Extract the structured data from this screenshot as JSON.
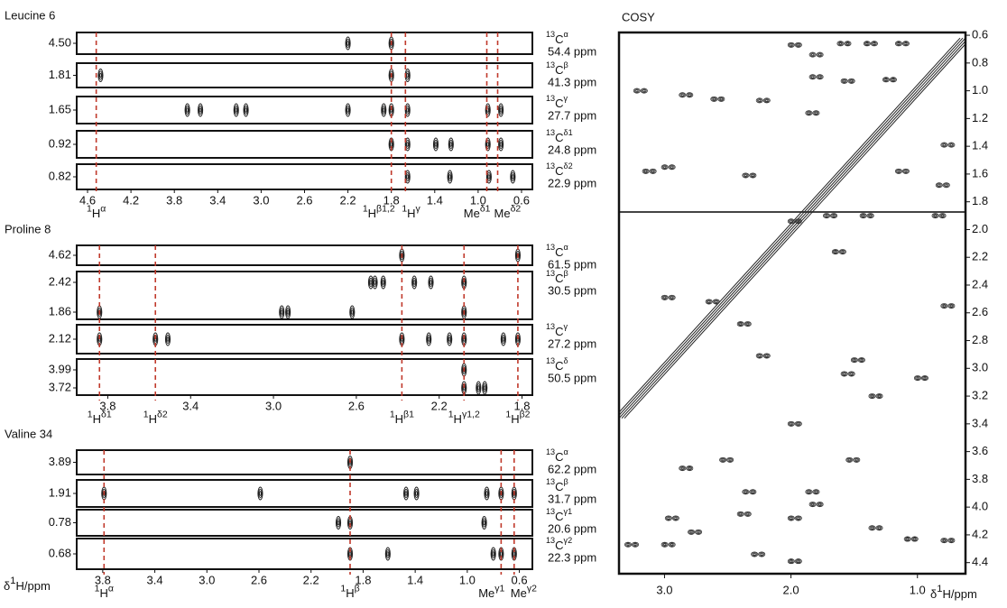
{
  "panels": [
    {
      "title": "Leucine 6",
      "xlim": [
        4.7,
        0.5
      ],
      "xticks": [
        4.6,
        4.2,
        3.8,
        3.4,
        {
          "value": 3,
          "label": "3.0"
        },
        2.6,
        2.2,
        1.8,
        1.4,
        {
          "value": 1,
          "label": "1.0"
        },
        0.6
      ],
      "strips": [
        {
          "ylabels": [
            "4.50"
          ],
          "iso": "13",
          "atom": "C",
          "sup": "α",
          "shift": "54.4 ppm",
          "peaks": [
            [
              2.2,
              1.8
            ]
          ]
        },
        {
          "ylabels": [
            "1.81"
          ],
          "iso": "13",
          "atom": "C",
          "sup": "β",
          "shift": "41.3 ppm",
          "peaks": [
            [
              4.48,
              1.8,
              1.65
            ]
          ]
        },
        {
          "ylabels": [
            "1.65"
          ],
          "iso": "13",
          "atom": "C",
          "sup": "γ",
          "shift": "27.7 ppm",
          "peaks": [
            [
              3.68,
              3.56,
              3.23,
              3.14,
              2.2,
              1.87,
              1.8,
              1.65,
              0.91,
              0.79
            ]
          ]
        },
        {
          "ylabels": [
            "0.92"
          ],
          "iso": "13",
          "atom": "C",
          "sup": "δ1",
          "shift": "24.8 ppm",
          "peaks": [
            [
              1.8,
              1.65,
              1.39,
              1.25,
              0.91,
              0.79
            ]
          ]
        },
        {
          "ylabels": [
            "0.82"
          ],
          "iso": "13",
          "atom": "C",
          "sup": "δ2",
          "shift": "22.9 ppm",
          "peaks": [
            [
              1.65,
              1.26,
              0.9,
              0.68
            ]
          ]
        }
      ],
      "assignments": [
        {
          "ppm": 4.52,
          "iso": "1",
          "base": "H",
          "sup": "α"
        },
        {
          "ppm": 1.8,
          "iso": "1",
          "base": "H",
          "sup": "β1,2"
        },
        {
          "ppm": 1.67,
          "iso": "1",
          "base": "H",
          "sup": "γ"
        },
        {
          "ppm": 0.92,
          "base": "Me",
          "sup": "δ1"
        },
        {
          "ppm": 0.82,
          "base": "Me",
          "sup": "δ2"
        }
      ]
    },
    {
      "title": "Proline 8",
      "xlim": [
        3.95,
        1.75
      ],
      "xticks": [
        3.8,
        3.4,
        {
          "value": 3,
          "label": "3.0"
        },
        2.6,
        2.2,
        1.8
      ],
      "strips": [
        {
          "ylabels": [
            "4.62"
          ],
          "iso": "13",
          "atom": "C",
          "sup": "α",
          "shift": "61.5 ppm",
          "peaks": [
            [
              2.38,
              1.82
            ]
          ]
        },
        {
          "ylabels": [
            "2.42",
            "1.86"
          ],
          "iso": "13",
          "atom": "C",
          "sup": "β",
          "shift": "30.5 ppm",
          "peaks": [
            [
              2.53,
              2.51,
              2.47,
              2.32,
              2.24,
              2.08
            ],
            [
              3.84,
              2.96,
              2.93,
              2.62,
              2.08
            ]
          ]
        },
        {
          "ylabels": [
            "2.12"
          ],
          "iso": "13",
          "atom": "C",
          "sup": "γ",
          "shift": "27.2 ppm",
          "peaks": [
            [
              3.84,
              3.57,
              3.51,
              2.38,
              2.25,
              2.15,
              2.08,
              1.89,
              1.82
            ]
          ]
        },
        {
          "ylabels": [
            "3.99",
            "3.72"
          ],
          "iso": "13",
          "atom": "C",
          "sup": "δ",
          "shift": "50.5 ppm",
          "peaks": [
            [
              2.08
            ],
            [
              2.08,
              2.01,
              1.98
            ]
          ]
        }
      ],
      "assignments": [
        {
          "ppm": 3.84,
          "iso": "1",
          "base": "H",
          "sup": "δ1"
        },
        {
          "ppm": 3.57,
          "iso": "1",
          "base": "H",
          "sup": "δ2"
        },
        {
          "ppm": 2.38,
          "iso": "1",
          "base": "H",
          "sup": "β1"
        },
        {
          "ppm": 2.08,
          "iso": "1",
          "base": "H",
          "sup": "γ1,2"
        },
        {
          "ppm": 1.82,
          "iso": "1",
          "base": "H",
          "sup": "β2"
        }
      ]
    },
    {
      "title": "Valine 34",
      "xlim": [
        4.0,
        0.5
      ],
      "xticks": [
        3.8,
        3.4,
        {
          "value": 3,
          "label": "3.0"
        },
        2.6,
        2.2,
        1.8,
        1.4,
        {
          "value": 1,
          "label": "1.0"
        },
        0.6
      ],
      "x_label": {
        "pre": "δ",
        "sup": "1",
        "post": "H/ppm"
      },
      "strips": [
        {
          "ylabels": [
            "3.89"
          ],
          "iso": "13",
          "atom": "C",
          "sup": "α",
          "shift": "62.2 ppm",
          "peaks": [
            [
              1.9
            ]
          ]
        },
        {
          "ylabels": [
            "1.91"
          ],
          "iso": "13",
          "atom": "C",
          "sup": "β",
          "shift": "31.7 ppm",
          "peaks": [
            [
              3.79,
              2.59,
              1.47,
              1.39,
              0.85,
              0.74,
              0.64
            ]
          ]
        },
        {
          "ylabels": [
            "0.78"
          ],
          "iso": "13",
          "atom": "C",
          "sup": "γ1",
          "shift": "20.6 ppm",
          "peaks": [
            [
              1.99,
              1.9,
              0.87
            ]
          ]
        },
        {
          "ylabels": [
            "0.68"
          ],
          "iso": "13",
          "atom": "C",
          "sup": "γ2",
          "shift": "22.3 ppm",
          "peaks": [
            [
              1.9,
              1.61,
              0.8,
              0.74,
              0.64
            ]
          ]
        }
      ],
      "assignments": [
        {
          "ppm": 3.79,
          "iso": "1",
          "base": "H",
          "sup": "α"
        },
        {
          "ppm": 1.9,
          "iso": "1",
          "base": "H",
          "sup": "β"
        },
        {
          "ppm": 0.74,
          "base": "Me",
          "sup": "γ1"
        },
        {
          "ppm": 0.64,
          "base": "Me",
          "sup": "γ2"
        }
      ]
    }
  ],
  "cosy": {
    "title": "COSY",
    "xlim": [
      3.36,
      0.62
    ],
    "ylim": [
      0.58,
      4.48
    ],
    "xticks": [
      {
        "value": 3,
        "label": "3.0"
      },
      {
        "value": 2,
        "label": "2.0"
      },
      {
        "value": 1,
        "label": "1.0"
      }
    ],
    "yticks": [
      0.6,
      0.8,
      {
        "value": 1,
        "label": "1.0"
      },
      1.2,
      1.4,
      1.6,
      1.8,
      {
        "value": 2,
        "label": "2.0"
      },
      2.2,
      2.4,
      2.6,
      2.8,
      {
        "value": 3,
        "label": "3.0"
      },
      3.2,
      3.4,
      3.6,
      3.8,
      {
        "value": 4,
        "label": "4.0"
      },
      4.2,
      4.4
    ],
    "x_label": {
      "pre": "δ",
      "sup": "1",
      "post": "H/ppm"
    },
    "peaks": [
      [
        1.97,
        0.67
      ],
      [
        1.8,
        0.74
      ],
      [
        1.58,
        0.66
      ],
      [
        1.37,
        0.66
      ],
      [
        1.12,
        0.66
      ],
      [
        1.8,
        0.9
      ],
      [
        1.55,
        0.93
      ],
      [
        1.22,
        0.92
      ],
      [
        3.19,
        1.0
      ],
      [
        2.83,
        1.03
      ],
      [
        2.58,
        1.06
      ],
      [
        2.22,
        1.07
      ],
      [
        1.83,
        1.16
      ],
      [
        0.76,
        1.39
      ],
      [
        0.8,
        1.68
      ],
      [
        1.12,
        1.58
      ],
      [
        3.12,
        1.58
      ],
      [
        2.97,
        1.55
      ],
      [
        2.33,
        1.61
      ],
      [
        1.97,
        1.94
      ],
      [
        1.69,
        1.9
      ],
      [
        1.4,
        1.9
      ],
      [
        0.83,
        1.9
      ],
      [
        2.97,
        2.49
      ],
      [
        2.62,
        2.52
      ],
      [
        2.37,
        2.68
      ],
      [
        2.22,
        2.91
      ],
      [
        0.97,
        3.07
      ],
      [
        1.97,
        3.4
      ],
      [
        1.51,
        3.66
      ],
      [
        1.33,
        3.2
      ],
      [
        2.83,
        3.72
      ],
      [
        2.51,
        3.66
      ],
      [
        2.94,
        4.08
      ],
      [
        2.76,
        4.18
      ],
      [
        2.37,
        4.05
      ],
      [
        1.97,
        4.08
      ],
      [
        1.8,
        3.98
      ],
      [
        1.33,
        4.15
      ],
      [
        1.05,
        4.23
      ],
      [
        0.76,
        4.24
      ],
      [
        2.33,
        3.89
      ],
      [
        1.83,
        3.89
      ],
      [
        3.26,
        4.27
      ],
      [
        2.97,
        4.27
      ],
      [
        2.26,
        4.34
      ],
      [
        1.97,
        4.39
      ],
      [
        1.47,
        2.94
      ],
      [
        1.55,
        3.04
      ],
      [
        0.76,
        2.55
      ],
      [
        1.62,
        2.16
      ]
    ]
  }
}
